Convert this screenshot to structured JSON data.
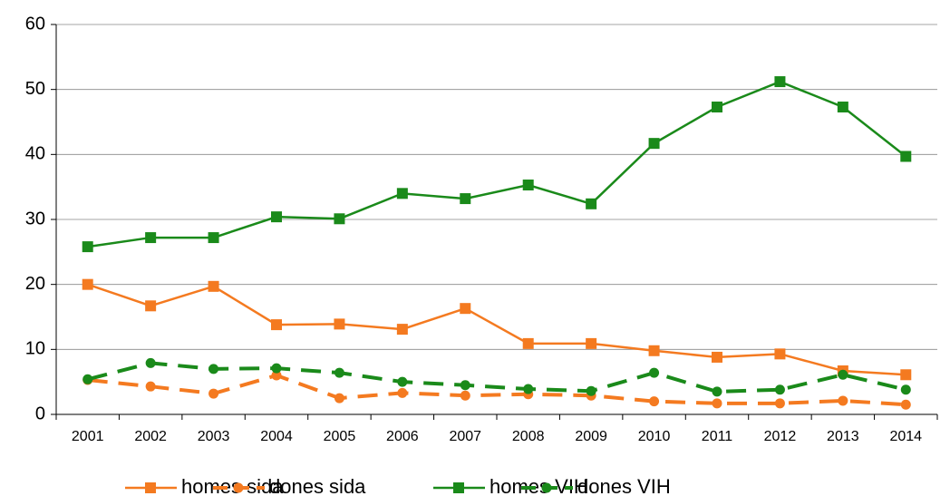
{
  "chart_data": {
    "type": "line",
    "categories": [
      "2001",
      "2002",
      "2003",
      "2004",
      "2005",
      "2006",
      "2007",
      "2008",
      "2009",
      "2010",
      "2011",
      "2012",
      "2013",
      "2014"
    ],
    "series": [
      {
        "name": "homes sida",
        "color": "#f47a20",
        "marker": "square",
        "dashed": false,
        "values": [
          20.0,
          16.7,
          19.7,
          13.8,
          13.9,
          13.1,
          16.3,
          10.9,
          10.9,
          9.8,
          8.8,
          9.3,
          6.7,
          6.1
        ]
      },
      {
        "name": "dones sida",
        "color": "#f47a20",
        "marker": "circle",
        "dashed": true,
        "values": [
          5.3,
          4.3,
          3.2,
          6.0,
          2.5,
          3.3,
          2.9,
          3.1,
          2.9,
          2.0,
          1.7,
          1.7,
          2.1,
          1.5
        ]
      },
      {
        "name": "homes VIH",
        "color": "#1a8a1a",
        "marker": "square",
        "dashed": false,
        "values": [
          25.8,
          27.2,
          27.2,
          30.4,
          30.1,
          34.0,
          33.2,
          35.3,
          32.4,
          41.7,
          47.3,
          51.2,
          47.3,
          39.7
        ]
      },
      {
        "name": "dones VIH",
        "color": "#1a8a1a",
        "marker": "circle",
        "dashed": true,
        "values": [
          5.4,
          7.9,
          7.0,
          7.1,
          6.4,
          5.0,
          4.5,
          3.9,
          3.6,
          6.4,
          3.5,
          3.8,
          6.1,
          3.8
        ]
      }
    ],
    "ylim": [
      0,
      60
    ],
    "yticks": [
      0,
      10,
      20,
      30,
      40,
      50,
      60
    ],
    "grid": true,
    "legend": "bottom"
  }
}
